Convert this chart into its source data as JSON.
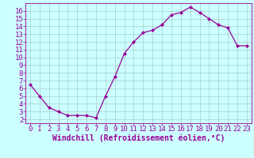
{
  "x": [
    0,
    1,
    2,
    3,
    4,
    5,
    6,
    7,
    8,
    9,
    10,
    11,
    12,
    13,
    14,
    15,
    16,
    17,
    18,
    19,
    20,
    21,
    22,
    23
  ],
  "y": [
    6.5,
    5.0,
    3.5,
    3.0,
    2.5,
    2.5,
    2.5,
    2.2,
    5.0,
    7.5,
    10.5,
    12.0,
    13.2,
    13.5,
    14.2,
    15.5,
    15.8,
    16.5,
    15.8,
    15.0,
    14.2,
    13.8,
    11.5,
    11.5
  ],
  "line_color": "#990099",
  "marker_color": "#990099",
  "bg_color": "#ccffff",
  "grid_color": "#aacccc",
  "tick_label_color": "#990099",
  "xlabel": "Windchill (Refroidissement éolien,°C)",
  "xlim": [
    -0.5,
    23.5
  ],
  "ylim": [
    1.5,
    17.0
  ],
  "yticks": [
    2,
    3,
    4,
    5,
    6,
    7,
    8,
    9,
    10,
    11,
    12,
    13,
    14,
    15,
    16
  ],
  "xticks": [
    0,
    1,
    2,
    3,
    4,
    5,
    6,
    7,
    8,
    9,
    10,
    11,
    12,
    13,
    14,
    15,
    16,
    17,
    18,
    19,
    20,
    21,
    22,
    23
  ],
  "font_size": 6.5,
  "xlabel_font_size": 7.0
}
